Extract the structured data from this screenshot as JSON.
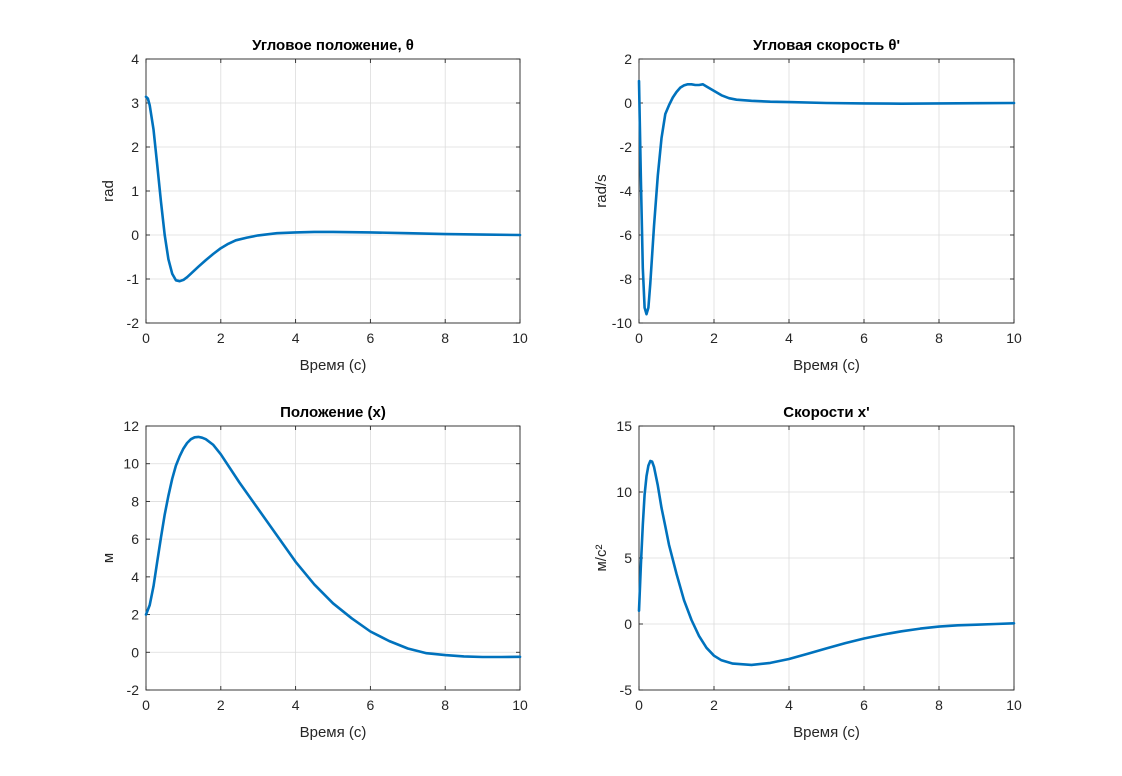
{
  "chart_data": [
    {
      "type": "line",
      "title": "Угловое положение, θ",
      "xlabel": "Время (с)",
      "ylabel": "rad",
      "xlim": [
        0,
        10
      ],
      "ylim": [
        -2,
        4
      ],
      "xticks": [
        0,
        2,
        4,
        6,
        8,
        10
      ],
      "yticks": [
        -2,
        -1,
        0,
        1,
        2,
        3,
        4
      ],
      "grid": true,
      "series": [
        {
          "x": [
            0,
            0.05,
            0.1,
            0.2,
            0.3,
            0.4,
            0.5,
            0.6,
            0.7,
            0.8,
            0.9,
            1.0,
            1.1,
            1.2,
            1.4,
            1.6,
            1.8,
            2.0,
            2.2,
            2.4,
            2.7,
            3.0,
            3.5,
            4.0,
            4.5,
            5.0,
            6.0,
            7.0,
            8.0,
            9.0,
            10.0
          ],
          "y": [
            3.14,
            3.1,
            2.95,
            2.4,
            1.6,
            0.75,
            0.0,
            -0.55,
            -0.88,
            -1.03,
            -1.05,
            -1.02,
            -0.96,
            -0.88,
            -0.72,
            -0.57,
            -0.43,
            -0.3,
            -0.2,
            -0.12,
            -0.06,
            -0.01,
            0.04,
            0.06,
            0.07,
            0.07,
            0.06,
            0.04,
            0.02,
            0.01,
            0.0
          ]
        }
      ]
    },
    {
      "type": "line",
      "title": "Угловая скорость θ'",
      "xlabel": "Время (с)",
      "ylabel": "rad/s",
      "xlim": [
        0,
        10
      ],
      "ylim": [
        -10,
        2
      ],
      "xticks": [
        0,
        2,
        4,
        6,
        8,
        10
      ],
      "yticks": [
        -10,
        -8,
        -6,
        -4,
        -2,
        0,
        2
      ],
      "grid": true,
      "series": [
        {
          "x": [
            0,
            0.05,
            0.1,
            0.15,
            0.2,
            0.25,
            0.3,
            0.4,
            0.5,
            0.6,
            0.7,
            0.8,
            0.9,
            1.0,
            1.1,
            1.2,
            1.3,
            1.4,
            1.5,
            1.6,
            1.7,
            1.8,
            2.0,
            2.2,
            2.4,
            2.6,
            3.0,
            3.5,
            4.0,
            5.0,
            6.0,
            7.0,
            8.0,
            9.0,
            10.0
          ],
          "y": [
            1.0,
            -3.5,
            -7.5,
            -9.3,
            -9.6,
            -9.3,
            -8.2,
            -5.6,
            -3.3,
            -1.6,
            -0.5,
            -0.1,
            0.25,
            0.5,
            0.7,
            0.8,
            0.85,
            0.85,
            0.82,
            0.82,
            0.85,
            0.75,
            0.55,
            0.35,
            0.22,
            0.15,
            0.1,
            0.06,
            0.04,
            0.0,
            -0.02,
            -0.03,
            -0.02,
            -0.01,
            0.0
          ]
        }
      ]
    },
    {
      "type": "line",
      "title": "Положение (x)",
      "xlabel": "Время (с)",
      "ylabel": "м",
      "xlim": [
        0,
        10
      ],
      "ylim": [
        -2,
        12
      ],
      "xticks": [
        0,
        2,
        4,
        6,
        8,
        10
      ],
      "yticks": [
        -2,
        0,
        2,
        4,
        6,
        8,
        10,
        12
      ],
      "grid": true,
      "series": [
        {
          "x": [
            0,
            0.1,
            0.2,
            0.3,
            0.4,
            0.5,
            0.6,
            0.7,
            0.8,
            0.9,
            1.0,
            1.1,
            1.2,
            1.3,
            1.4,
            1.5,
            1.6,
            1.8,
            2.0,
            2.5,
            3.0,
            3.5,
            4.0,
            4.5,
            5.0,
            5.5,
            6.0,
            6.5,
            7.0,
            7.5,
            8.0,
            8.5,
            9.0,
            9.5,
            10.0
          ],
          "y": [
            2.0,
            2.5,
            3.5,
            4.8,
            6.1,
            7.3,
            8.3,
            9.2,
            9.9,
            10.4,
            10.8,
            11.1,
            11.3,
            11.4,
            11.42,
            11.38,
            11.3,
            11.0,
            10.5,
            9.0,
            7.6,
            6.2,
            4.8,
            3.6,
            2.6,
            1.8,
            1.1,
            0.6,
            0.2,
            -0.05,
            -0.15,
            -0.22,
            -0.25,
            -0.25,
            -0.24
          ]
        }
      ]
    },
    {
      "type": "line",
      "title": "Скорости x'",
      "xlabel": "Время (с)",
      "ylabel": "м/с²",
      "xlim": [
        0,
        10
      ],
      "ylim": [
        -5,
        15
      ],
      "xticks": [
        0,
        2,
        4,
        6,
        8,
        10
      ],
      "yticks": [
        -5,
        0,
        5,
        10,
        15
      ],
      "grid": true,
      "series": [
        {
          "x": [
            0,
            0.05,
            0.1,
            0.15,
            0.2,
            0.25,
            0.3,
            0.35,
            0.4,
            0.5,
            0.6,
            0.7,
            0.8,
            1.0,
            1.2,
            1.4,
            1.6,
            1.8,
            2.0,
            2.2,
            2.5,
            3.0,
            3.5,
            4.0,
            4.5,
            5.0,
            5.5,
            6.0,
            6.5,
            7.0,
            7.5,
            8.0,
            8.5,
            9.0,
            9.5,
            10.0
          ],
          "y": [
            1.0,
            4.5,
            7.5,
            9.8,
            11.2,
            12.0,
            12.35,
            12.3,
            11.9,
            10.5,
            8.8,
            7.4,
            6.0,
            3.8,
            1.8,
            0.3,
            -0.9,
            -1.8,
            -2.4,
            -2.75,
            -3.0,
            -3.1,
            -2.95,
            -2.65,
            -2.25,
            -1.85,
            -1.45,
            -1.1,
            -0.8,
            -0.55,
            -0.35,
            -0.2,
            -0.1,
            -0.05,
            0.0,
            0.05
          ]
        }
      ]
    }
  ],
  "colors": {
    "series": "#0072BD"
  }
}
